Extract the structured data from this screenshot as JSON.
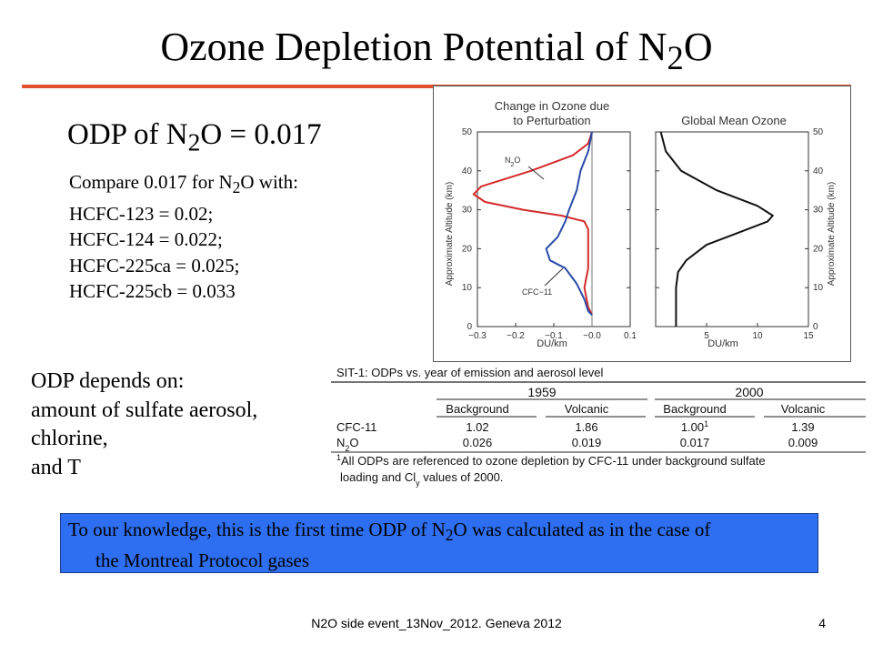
{
  "slide": {
    "title": {
      "pre": "Ozone Depletion Potential of N",
      "sub": "2",
      "post": "O"
    },
    "odp_main": {
      "pre": "ODP of N",
      "sub": "2",
      "post": "O = 0.017"
    },
    "compare_intro": {
      "pre": "Compare 0.017 for N",
      "sub": "2",
      "post": "O with:"
    },
    "compare_items": [
      "HCFC-123 = 0.02;",
      "HCFC-124 = 0.022;",
      "HCFC-225ca = 0.025;",
      "HCFC-225cb = 0.033"
    ],
    "depends_lines": [
      "ODP depends on:",
      "amount of sulfate aerosol,",
      "chlorine,",
      "and T"
    ],
    "note": {
      "l1_pre": "To our knowledge, this is the first time ODP of N",
      "l1_sub": "2",
      "l1_post": "O was calculated as in the case of",
      "l2": "the Montreal Protocol gases"
    },
    "footer": "N2O side event_13Nov_2012. Geneva 2012",
    "page_number": "4",
    "accent_color": "#e0502a",
    "note_color": "#2e6ef0"
  },
  "figure": {
    "left_title_1": "Change in Ozone due",
    "left_title_2": "to Perturbation",
    "right_title": "Global Mean Ozone",
    "y_label": "Approximate Altitude (km)",
    "x_label": "DU/km",
    "left_x_ticks": [
      "−0.3",
      "−0.2",
      "−0.1",
      "−0.0",
      "0.1"
    ],
    "right_x_ticks": [
      "5",
      "10",
      "15"
    ],
    "y_ticks": [
      "0",
      "10",
      "20",
      "30",
      "40",
      "50"
    ],
    "label_n2o": {
      "pre": "N",
      "sub": "2",
      "post": "O"
    },
    "label_cfc": "CFC−11"
  },
  "chart_data": [
    {
      "type": "line",
      "title": "Change in Ozone due to Perturbation",
      "xlabel": "DU/km",
      "ylabel": "Approximate Altitude (km)",
      "xlim": [
        -0.3,
        0.1
      ],
      "ylim": [
        0,
        50
      ],
      "series": [
        {
          "name": "N2O",
          "color": "#d42a2a",
          "points": [
            [
              0.0,
              50
            ],
            [
              -0.01,
              47
            ],
            [
              -0.05,
              44
            ],
            [
              -0.16,
              40
            ],
            [
              -0.29,
              36
            ],
            [
              -0.31,
              34
            ],
            [
              -0.28,
              32
            ],
            [
              -0.18,
              30
            ],
            [
              -0.08,
              28.5
            ],
            [
              -0.02,
              27
            ],
            [
              -0.01,
              25
            ],
            [
              -0.01,
              20
            ],
            [
              -0.01,
              15
            ],
            [
              -0.02,
              10
            ],
            [
              -0.01,
              5
            ],
            [
              0.0,
              3
            ]
          ]
        },
        {
          "name": "CFC−11",
          "color": "#2a4aa8",
          "points": [
            [
              0.0,
              50
            ],
            [
              -0.01,
              45
            ],
            [
              -0.03,
              40
            ],
            [
              -0.04,
              35
            ],
            [
              -0.06,
              30
            ],
            [
              -0.07,
              27
            ],
            [
              -0.09,
              23
            ],
            [
              -0.12,
              20
            ],
            [
              -0.11,
              17
            ],
            [
              -0.07,
              15
            ],
            [
              -0.04,
              11
            ],
            [
              -0.02,
              7
            ],
            [
              -0.01,
              4
            ],
            [
              0.0,
              3
            ]
          ]
        }
      ]
    },
    {
      "type": "line",
      "title": "Global Mean Ozone",
      "xlabel": "DU/km",
      "ylabel": "Approximate Altitude (km)",
      "xlim": [
        0,
        15
      ],
      "ylim": [
        0,
        50
      ],
      "series": [
        {
          "points": [
            [
              0.5,
              50
            ],
            [
              1,
              45
            ],
            [
              2.5,
              40
            ],
            [
              6,
              35
            ],
            [
              10,
              31
            ],
            [
              11.5,
              28.5
            ],
            [
              11,
              27
            ],
            [
              8,
              24
            ],
            [
              5,
              21
            ],
            [
              3,
              17
            ],
            [
              2.2,
              14
            ],
            [
              2,
              10
            ],
            [
              2,
              6
            ],
            [
              2,
              0
            ]
          ]
        }
      ]
    }
  ],
  "table": {
    "caption": "SIT-1: ODPs vs. year of emission and aerosol level",
    "years": [
      "1959",
      "2000"
    ],
    "subheaders": [
      "Background",
      "Volcanic",
      "Background",
      "Volcanic"
    ],
    "rows": [
      {
        "label": "CFC-11",
        "values": [
          "1.02",
          "1.86",
          "1.00",
          "1.39"
        ],
        "sup": "1"
      },
      {
        "label": "N2O",
        "values": [
          "0.026",
          "0.019",
          "0.017",
          "0.009"
        ]
      }
    ],
    "footnote_1": "All ODPs are referenced to ozone depletion by CFC-11 under background sulfate",
    "footnote_2_pre": "loading and Cl",
    "footnote_2_sub": "y",
    "footnote_2_post": " values of 2000.",
    "footnote_mark": "1"
  }
}
